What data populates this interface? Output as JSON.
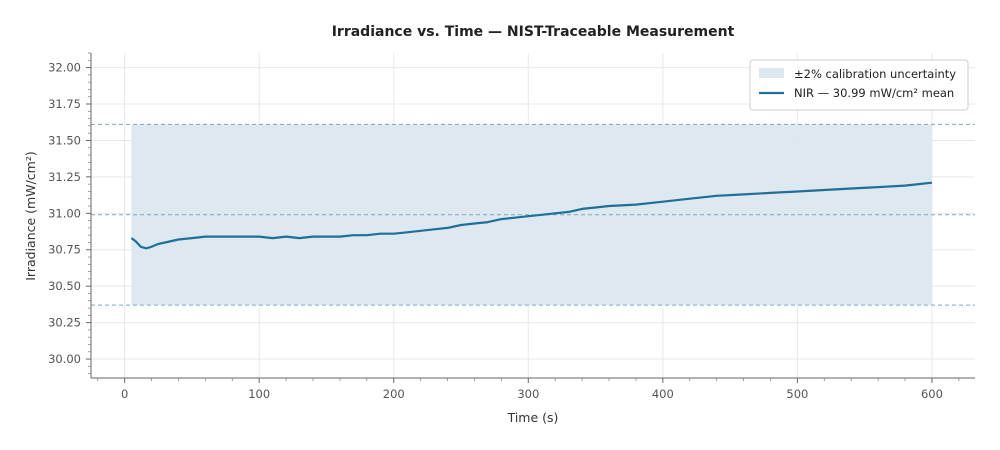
{
  "chart_data": {
    "type": "line",
    "title": "Irradiance vs. Time  —  NIST-Traceable Measurement",
    "xlabel": "Time (s)",
    "ylabel": "Irradiance (mW/cm²)",
    "xlim": [
      -25,
      632
    ],
    "ylim": [
      29.87,
      32.1
    ],
    "xticks": [
      0,
      100,
      200,
      300,
      400,
      500,
      600
    ],
    "xtick_labels": [
      "0",
      "100",
      "200",
      "300",
      "400",
      "500",
      "600"
    ],
    "yticks": [
      30.0,
      30.25,
      30.5,
      30.75,
      31.0,
      31.25,
      31.5,
      31.75,
      32.0
    ],
    "ytick_labels": [
      "30.00",
      "30.25",
      "30.50",
      "30.75",
      "31.00",
      "31.25",
      "31.50",
      "31.75",
      "32.00"
    ],
    "grid": true,
    "legend_position": "top-right",
    "band": {
      "name": "±2% calibration uncertainty",
      "x_range": [
        5,
        600
      ],
      "lower": 30.37,
      "upper": 31.61,
      "color": "#dce7f0"
    },
    "reference_lines": [
      31.61,
      30.99,
      30.37
    ],
    "series": [
      {
        "name": "NIR  —  30.99 mW/cm² mean",
        "color": "#1f6f9b",
        "x": [
          5,
          8,
          12,
          16,
          20,
          25,
          30,
          35,
          40,
          50,
          60,
          70,
          80,
          90,
          100,
          110,
          120,
          130,
          140,
          150,
          160,
          170,
          180,
          190,
          200,
          210,
          220,
          230,
          240,
          250,
          260,
          270,
          280,
          290,
          300,
          310,
          320,
          330,
          340,
          350,
          360,
          380,
          400,
          420,
          440,
          460,
          480,
          500,
          520,
          540,
          560,
          580,
          600
        ],
        "values": [
          30.83,
          30.81,
          30.77,
          30.76,
          30.77,
          30.79,
          30.8,
          30.81,
          30.82,
          30.83,
          30.84,
          30.84,
          30.84,
          30.84,
          30.84,
          30.83,
          30.84,
          30.83,
          30.84,
          30.84,
          30.84,
          30.85,
          30.85,
          30.86,
          30.86,
          30.87,
          30.88,
          30.89,
          30.9,
          30.92,
          30.93,
          30.94,
          30.96,
          30.97,
          30.98,
          30.99,
          31.0,
          31.01,
          31.03,
          31.04,
          31.05,
          31.06,
          31.08,
          31.1,
          31.12,
          31.13,
          31.14,
          31.15,
          31.16,
          31.17,
          31.18,
          31.19,
          31.21
        ]
      }
    ]
  }
}
